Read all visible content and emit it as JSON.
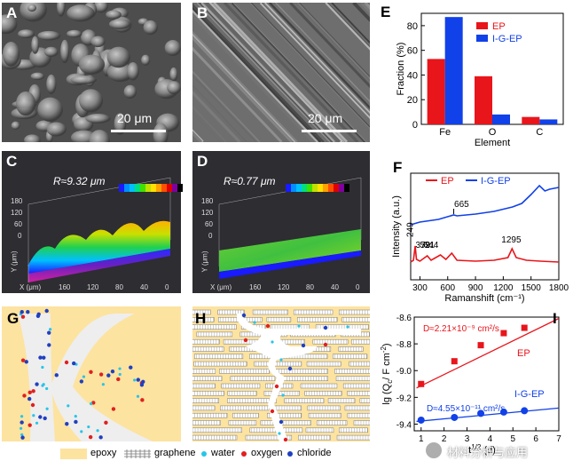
{
  "panels": {
    "A": {
      "label": "A",
      "scale": "20 μm"
    },
    "B": {
      "label": "B",
      "scale": "20 μm"
    },
    "C": {
      "label": "C",
      "roughness": "R≈9.32 μm",
      "y_axis": "Y (μm)",
      "x_axis": "X (μm)",
      "y_ticks": [
        "180",
        "120",
        "60",
        "0"
      ],
      "x_ticks": [
        "160",
        "120",
        "80",
        "40",
        "0"
      ]
    },
    "D": {
      "label": "D",
      "roughness": "R≈0.77 μm",
      "y_axis": "Y (μm)",
      "x_axis": "X (μm)",
      "y_ticks": [
        "180",
        "120",
        "60",
        "0"
      ],
      "x_ticks": [
        "160",
        "120",
        "80",
        "40",
        "0"
      ]
    },
    "E": {
      "label": "E"
    },
    "F": {
      "label": "F"
    },
    "G": {
      "label": "G"
    },
    "H": {
      "label": "H"
    },
    "I": {
      "label": "I"
    }
  },
  "height_legend_colors": [
    "#1a1aff",
    "#0090ff",
    "#00c0ff",
    "#00e080",
    "#40e000",
    "#c0e000",
    "#ffe000",
    "#ffa000",
    "#ff5000",
    "#e00000",
    "#7f00a0",
    "#000000"
  ],
  "bottom_legend": {
    "epoxy": "epoxy",
    "graphene": "graphene",
    "water": "water",
    "oxygen": "oxygen",
    "chloride": "chloride"
  },
  "watermark": "材料分析与应用",
  "colors": {
    "ep": "#e8151b",
    "igep": "#1141e8",
    "epoxy": "#fde3a0",
    "water": "#27c5e8",
    "oxygen": "#e02020",
    "chloride": "#2040c0"
  },
  "chart_data": [
    {
      "type": "bar",
      "title": "",
      "xlabel": "Element",
      "ylabel": "Fraction (%)",
      "categories": [
        "Fe",
        "O",
        "C"
      ],
      "ylim": [
        0,
        90
      ],
      "yticks": [
        0,
        20,
        40,
        60,
        80
      ],
      "series": [
        {
          "name": "EP",
          "values": [
            53,
            39,
            6
          ]
        },
        {
          "name": "I-G-EP",
          "values": [
            87,
            8,
            4
          ]
        }
      ]
    },
    {
      "type": "line",
      "xlabel": "Ramanshift (cm⁻¹)",
      "ylabel": "Intensity (a.u.)",
      "xlim": [
        200,
        1800
      ],
      "xticks": [
        300,
        600,
        900,
        1200,
        1500,
        1800
      ],
      "series": [
        {
          "name": "EP"
        },
        {
          "name": "I-G-EP"
        }
      ],
      "annotations": [
        "249",
        "379",
        "521",
        "644",
        "1295",
        "665"
      ]
    },
    {
      "type": "scatter",
      "xlabel": "t",
      "xlabel_sup": "1/2",
      "xlabel_unit": "(d)",
      "ylabel": "lg (Q",
      "ylabel_sub": "c",
      "ylabel_rest": "/ F cm",
      "ylabel_sup": "-2",
      "ylabel_end": ")",
      "xlim": [
        0.7,
        7
      ],
      "ylim": [
        -9.45,
        -8.6
      ],
      "xticks": [
        1,
        2,
        3,
        4,
        5,
        6,
        7
      ],
      "yticks": [
        -8.6,
        -8.8,
        -9.0,
        -9.2,
        -9.4
      ],
      "ytick_labels": [
        "-8.6",
        "-8.8",
        "-9.0",
        "-9.2",
        "-9.4"
      ],
      "series": [
        {
          "name": "EP",
          "x": [
            1,
            2.45,
            3.6,
            4.6,
            5.5
          ],
          "y": [
            -9.1,
            -8.93,
            -8.81,
            -8.72,
            -8.68
          ],
          "fit_start": -9.13,
          "fit_end": -8.61,
          "diffusion": "D≈2.21×10⁻⁹ cm²/s"
        },
        {
          "name": "I-G-EP",
          "x": [
            1,
            2.45,
            3.6,
            4.6,
            5.5
          ],
          "y": [
            -9.37,
            -9.35,
            -9.32,
            -9.31,
            -9.3
          ],
          "fit_start": -9.38,
          "fit_end": -9.28,
          "diffusion": "D≈4.55×10⁻¹¹ cm²/s"
        }
      ]
    }
  ]
}
